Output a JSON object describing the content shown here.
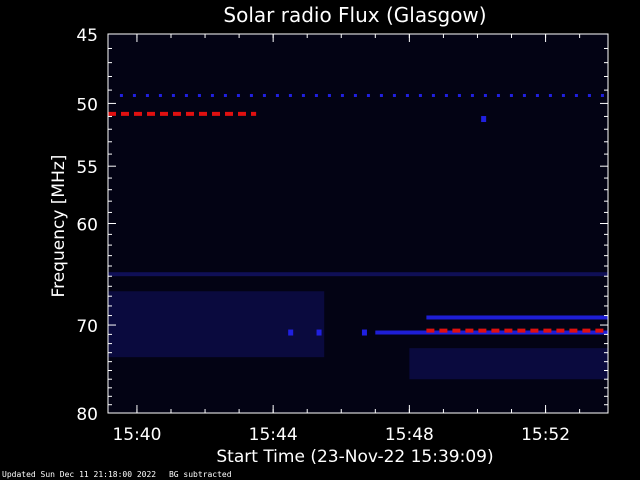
{
  "footer": {
    "updated": "Updated Sun Dec 11 21:18:00 2022",
    "note": "BG subtracted"
  },
  "colors": {
    "background": "#000000",
    "plot_background": "#030314",
    "axis": "#ffffff",
    "text": "#ffffff",
    "low_flux": "#1a1a8c",
    "mid_flux": "#2020e0",
    "high_flux": "#e01010"
  },
  "chart_data": {
    "type": "heatmap",
    "title": "Solar radio Flux (Glasgow)",
    "xlabel": "Start Time (23-Nov-22 15:39:09)",
    "ylabel": "Frequency [MHz]",
    "y_scale": "log",
    "y_inverted": true,
    "ylim": [
      45,
      80
    ],
    "yticks": [
      45,
      50,
      55,
      60,
      70,
      80
    ],
    "ytick_labels": [
      "45",
      "50",
      "55",
      "60",
      "70",
      "80"
    ],
    "xlim": [
      "15:39:09",
      "15:53:50"
    ],
    "xticks": [
      "15:40",
      "15:44",
      "15:48",
      "15:52"
    ],
    "xtick_labels": [
      "15:40",
      "15:44",
      "15:48",
      "15:52"
    ],
    "grid": false,
    "features": [
      {
        "kind": "dashed-band",
        "freq": 50.8,
        "from": "15:39:09",
        "to": "15:43:30",
        "level": "high"
      },
      {
        "kind": "dashed-band",
        "freq": 49.4,
        "from": "15:39:30",
        "to": "15:53:50",
        "level": "mid"
      },
      {
        "kind": "point",
        "freq": 51.2,
        "time": "15:50:10",
        "level": "mid"
      },
      {
        "kind": "band",
        "freq": 64.8,
        "from": "15:39:09",
        "to": "15:53:50",
        "level": "low"
      },
      {
        "kind": "band",
        "freq": 69.2,
        "from": "15:48:30",
        "to": "15:53:50",
        "level": "mid"
      },
      {
        "kind": "band",
        "freq": 70.8,
        "from": "15:47:00",
        "to": "15:53:50",
        "level": "mid"
      },
      {
        "kind": "dashed-band",
        "freq": 70.6,
        "from": "15:48:30",
        "to": "15:53:50",
        "level": "high"
      },
      {
        "kind": "point",
        "freq": 70.8,
        "time": "15:44:30",
        "level": "mid"
      },
      {
        "kind": "point",
        "freq": 70.8,
        "time": "15:45:20",
        "level": "mid"
      },
      {
        "kind": "point",
        "freq": 70.8,
        "time": "15:46:40",
        "level": "mid"
      },
      {
        "kind": "region",
        "freq_from": 66.5,
        "freq_to": 73.5,
        "from": "15:39:09",
        "to": "15:45:30",
        "level": "low"
      },
      {
        "kind": "region",
        "freq_from": 72.5,
        "freq_to": 76.0,
        "from": "15:48:00",
        "to": "15:53:50",
        "level": "low"
      }
    ]
  }
}
